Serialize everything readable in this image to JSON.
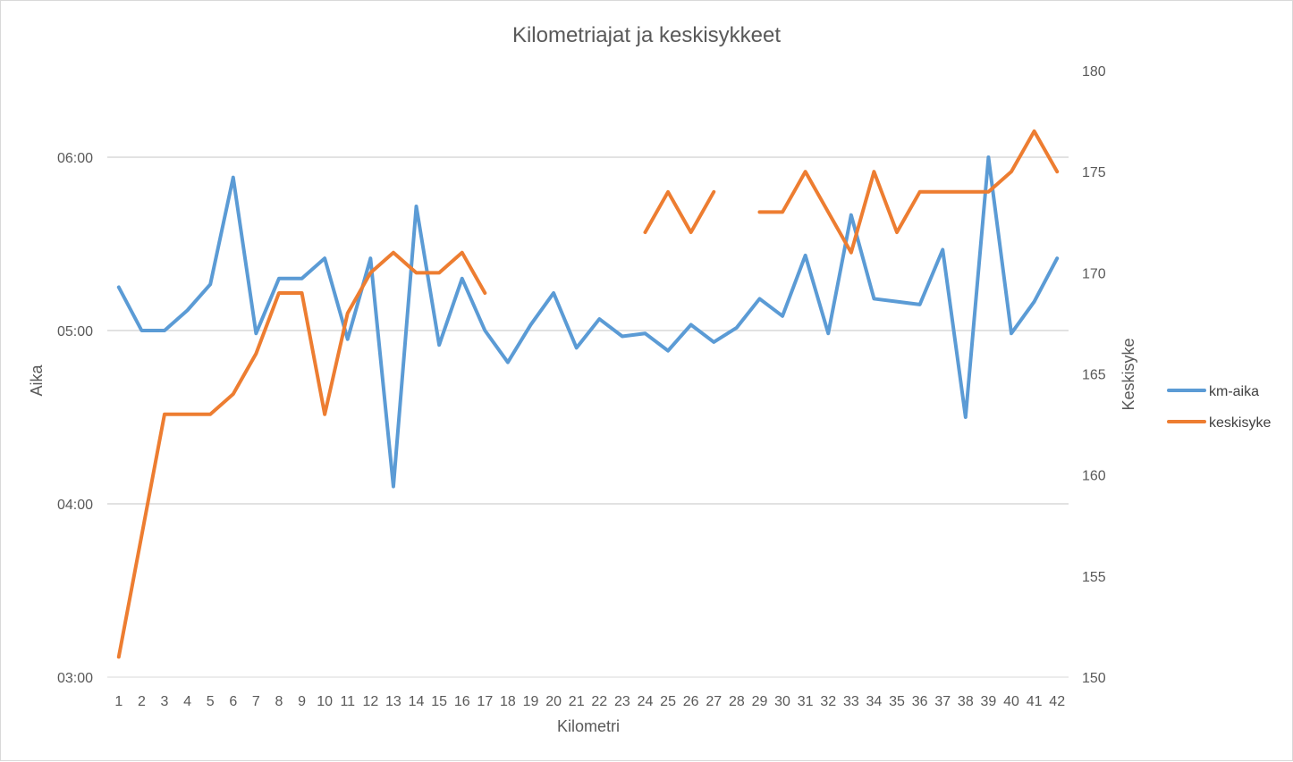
{
  "chart_data": {
    "type": "line",
    "title": "Kilometriajat ja keskisykkeet",
    "xlabel": "Kilometri",
    "ylabel_left": "Aika",
    "ylabel_right": "Keskisyke",
    "x": [
      1,
      2,
      3,
      4,
      5,
      6,
      7,
      8,
      9,
      10,
      11,
      12,
      13,
      14,
      15,
      16,
      17,
      18,
      19,
      20,
      21,
      22,
      23,
      24,
      25,
      26,
      27,
      28,
      29,
      30,
      31,
      32,
      33,
      34,
      35,
      36,
      37,
      38,
      39,
      40,
      41,
      42
    ],
    "left_axis": {
      "min_seconds": 180,
      "max_seconds": 390,
      "ticks": [
        "03:00",
        "04:00",
        "05:00",
        "06:00"
      ],
      "tick_seconds": [
        180,
        240,
        300,
        360
      ]
    },
    "right_axis": {
      "min": 150,
      "max": 180,
      "ticks": [
        "150",
        "155",
        "160",
        "165",
        "170",
        "175",
        "180"
      ],
      "tick_values": [
        150,
        155,
        160,
        165,
        170,
        175,
        180
      ]
    },
    "grid": true,
    "legend_position": "right",
    "series": [
      {
        "name": "km-aika",
        "axis": "left",
        "color": "#5b9bd5",
        "values_seconds": [
          315,
          300,
          300,
          307,
          316,
          353,
          299,
          318,
          318,
          325,
          297,
          325,
          246,
          343,
          295,
          318,
          300,
          289,
          302,
          313,
          294,
          304,
          298,
          299,
          293,
          302,
          296,
          301,
          311,
          305,
          326,
          299,
          340,
          311,
          310,
          309,
          328,
          270,
          360,
          299,
          310,
          325
        ]
      },
      {
        "name": "keskisyke",
        "axis": "right",
        "color": "#ed7d31",
        "values": [
          151,
          157,
          163,
          163,
          163,
          164,
          166,
          169,
          169,
          163,
          168,
          170,
          171,
          170,
          170,
          171,
          169,
          null,
          null,
          null,
          null,
          null,
          null,
          172,
          174,
          172,
          174,
          null,
          173,
          173,
          175,
          173,
          171,
          175,
          172,
          174,
          174,
          174,
          174,
          175,
          177,
          175
        ]
      }
    ]
  }
}
